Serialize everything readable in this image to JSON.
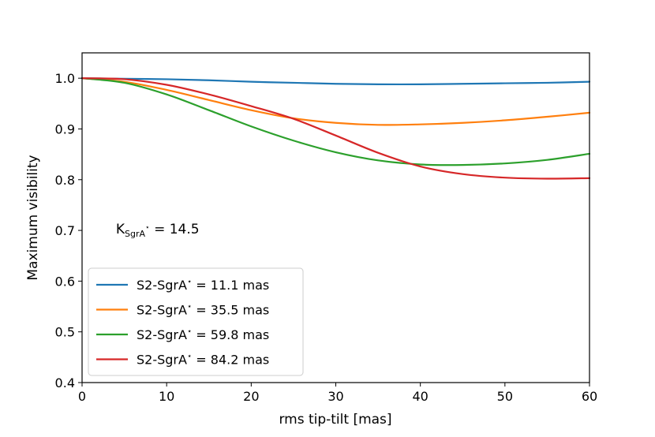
{
  "chart_data": {
    "type": "line",
    "title": "",
    "xlabel": "rms tip-tilt [mas]",
    "ylabel": "Maximum visibility",
    "xlim": [
      0,
      60
    ],
    "ylim": [
      0.4,
      1.05
    ],
    "xticks": [
      0,
      10,
      20,
      30,
      40,
      50,
      60
    ],
    "yticks": [
      0.4,
      0.5,
      0.6,
      0.7,
      0.8,
      0.9,
      1.0
    ],
    "xtick_labels": [
      "0",
      "10",
      "20",
      "30",
      "40",
      "50",
      "60"
    ],
    "ytick_labels": [
      "0.4",
      "0.5",
      "0.6",
      "0.7",
      "0.8",
      "0.9",
      "1.0"
    ],
    "grid": false,
    "legend_position": "lower-left",
    "annotation": {
      "base": "K",
      "subscript": "SgrA",
      "sup": "⋆",
      "value": "= 14.5",
      "x": 4,
      "y": 0.703
    },
    "x": [
      0,
      5,
      10,
      15,
      20,
      25,
      30,
      35,
      40,
      45,
      50,
      55,
      60
    ],
    "series": [
      {
        "name": "S2-SgrA⋆ = 11.1 mas",
        "label_prefix": "S2-SgrA",
        "label_sup": "⋆",
        "label_suffix": " = 11.1 mas",
        "color": "#1f77b4",
        "values": [
          1.0,
          0.999,
          0.998,
          0.996,
          0.993,
          0.991,
          0.989,
          0.988,
          0.988,
          0.989,
          0.99,
          0.991,
          0.993
        ]
      },
      {
        "name": "S2-SgrA⋆ = 35.5 mas",
        "label_prefix": "S2-SgrA",
        "label_sup": "⋆",
        "label_suffix": " = 35.5 mas",
        "color": "#ff7f0e",
        "values": [
          1.0,
          0.993,
          0.977,
          0.957,
          0.937,
          0.921,
          0.912,
          0.908,
          0.909,
          0.912,
          0.917,
          0.924,
          0.932
        ]
      },
      {
        "name": "S2-SgrA⋆ = 59.8 mas",
        "label_prefix": "S2-SgrA",
        "label_sup": "⋆",
        "label_suffix": " = 59.8 mas",
        "color": "#2ca02c",
        "values": [
          1.0,
          0.991,
          0.968,
          0.937,
          0.905,
          0.877,
          0.854,
          0.838,
          0.83,
          0.829,
          0.832,
          0.839,
          0.851
        ]
      },
      {
        "name": "S2-SgrA⋆ = 84.2 mas",
        "label_prefix": "S2-SgrA",
        "label_sup": "⋆",
        "label_suffix": " = 84.2 mas",
        "color": "#d62728",
        "values": [
          1.0,
          0.998,
          0.987,
          0.968,
          0.945,
          0.92,
          0.887,
          0.853,
          0.826,
          0.811,
          0.804,
          0.802,
          0.803
        ]
      }
    ]
  }
}
